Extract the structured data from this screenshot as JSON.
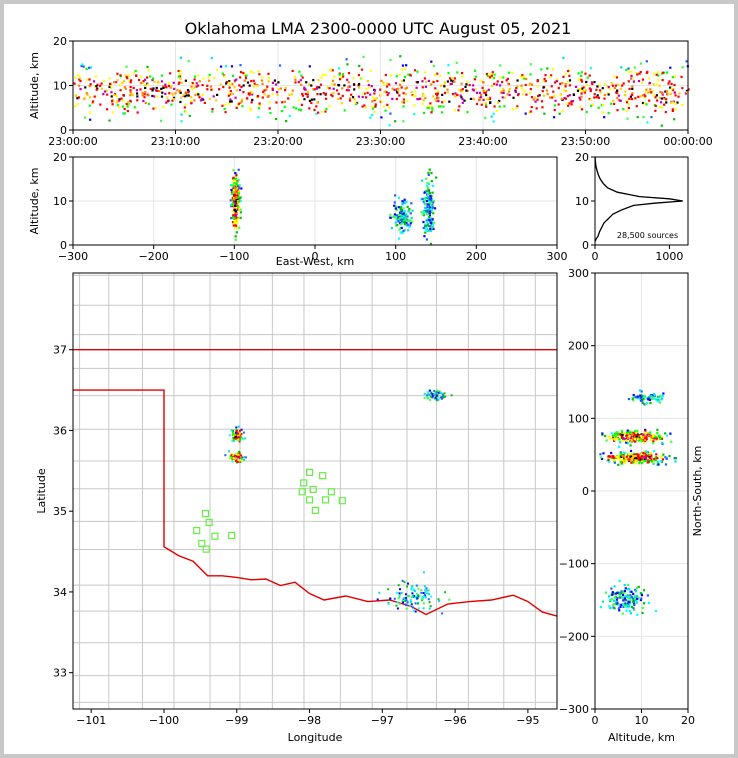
{
  "figure": {
    "title": "Oklahoma LMA 2300-0000 UTC August 05, 2021"
  },
  "chart_data": [
    {
      "id": "time-height",
      "type": "scatter",
      "title": "",
      "xlabel": "",
      "ylabel": "Altitude, km",
      "xlim": [
        0,
        60
      ],
      "ylim": [
        0,
        20
      ],
      "xticks": [
        0,
        10,
        20,
        30,
        40,
        50,
        60
      ],
      "xtick_labels": [
        "23:00:00",
        "23:10:00",
        "23:20:00",
        "23:30:00",
        "23:40:00",
        "23:50:00",
        "00:00:00"
      ],
      "yticks": [
        0,
        10,
        20
      ],
      "ytick_labels": [
        "0",
        "10",
        "20"
      ],
      "grid": true,
      "clusters": [
        {
          "x": [
            0,
            60
          ],
          "y_mean": 9,
          "y_sd": 2.8,
          "n": 1200
        }
      ]
    },
    {
      "id": "ew-height",
      "type": "scatter",
      "xlabel": "East-West, km",
      "ylabel": "Altitude, km",
      "xlim": [
        -300,
        300
      ],
      "ylim": [
        0,
        20
      ],
      "xticks": [
        -300,
        -200,
        -100,
        0,
        100,
        200,
        300
      ],
      "xtick_labels": [
        "−300",
        "−200",
        "−100",
        "0",
        "100",
        "200",
        "300"
      ],
      "yticks": [
        0,
        10,
        20
      ],
      "ytick_labels": [
        "0",
        "10",
        "20"
      ],
      "grid": true,
      "clusters": [
        {
          "x_mean": -100,
          "x_sd": 2.5,
          "y_mean": 10,
          "y_sd": 3.2,
          "n": 200,
          "hot": true
        },
        {
          "x_mean": 106,
          "x_sd": 6,
          "y_mean": 6.5,
          "y_sd": 1.6,
          "n": 120,
          "hot": false
        },
        {
          "x_mean": 140,
          "x_sd": 3.5,
          "y_mean": 9,
          "y_sd": 3.2,
          "n": 150,
          "hot": false
        }
      ]
    },
    {
      "id": "altitude-histogram",
      "type": "line",
      "xlim": [
        0,
        1250
      ],
      "ylim": [
        0,
        20
      ],
      "xticks": [
        0,
        1000
      ],
      "xtick_labels": [
        "0",
        "1000"
      ],
      "yticks": [
        0,
        10,
        20
      ],
      "ytick_labels": [
        "0",
        "10",
        "20"
      ],
      "annotation": "28,500 sources",
      "y": [
        0.8,
        1.5,
        2,
        3,
        4,
        5,
        6,
        7,
        8,
        9,
        9.5,
        10,
        10.5,
        11,
        12,
        13,
        14,
        15,
        16,
        17,
        18,
        19,
        20
      ],
      "x": [
        0,
        20,
        40,
        60,
        90,
        120,
        180,
        240,
        360,
        520,
        800,
        1180,
        1000,
        600,
        300,
        170,
        110,
        70,
        45,
        25,
        12,
        5,
        2
      ]
    },
    {
      "id": "plan-view",
      "type": "scatter",
      "xlabel": "Longitude",
      "ylabel": "Latitude",
      "xlim": [
        -101.25,
        -94.6
      ],
      "ylim": [
        32.55,
        37.95
      ],
      "xticks": [
        -101,
        -100,
        -99,
        -98,
        -97,
        -96,
        -95
      ],
      "xtick_labels": [
        "−101",
        "−100",
        "−99",
        "−98",
        "−97",
        "−96",
        "−95"
      ],
      "yticks": [
        33,
        34,
        35,
        36,
        37
      ],
      "ytick_labels": [
        "33",
        "34",
        "35",
        "36",
        "37"
      ],
      "clusters": [
        {
          "x_mean": -99.0,
          "x_sd": 0.04,
          "y_mean": 35.95,
          "y_sd": 0.04,
          "n": 90,
          "hot": true
        },
        {
          "x_mean": -99.02,
          "x_sd": 0.05,
          "y_mean": 35.68,
          "y_sd": 0.03,
          "n": 70,
          "hot": true
        },
        {
          "x_mean": -96.28,
          "x_sd": 0.08,
          "y_mean": 36.45,
          "y_sd": 0.03,
          "n": 60,
          "hot": false
        },
        {
          "x_mean": -96.6,
          "x_sd": 0.18,
          "y_mean": 33.95,
          "y_sd": 0.08,
          "n": 110,
          "hot": false
        }
      ],
      "stations": {
        "lon": [
          -98.0,
          -97.82,
          -98.08,
          -97.95,
          -98.1,
          -97.7,
          -98.0,
          -97.78,
          -97.55,
          -97.92,
          -99.43,
          -99.38,
          -99.55,
          -99.3,
          -99.48,
          -99.42,
          -99.07
        ],
        "lat": [
          35.48,
          35.44,
          35.35,
          35.27,
          35.24,
          35.24,
          35.14,
          35.14,
          35.13,
          35.01,
          34.97,
          34.86,
          34.76,
          34.69,
          34.6,
          34.53,
          34.7
        ]
      }
    },
    {
      "id": "ns-height",
      "type": "scatter",
      "xlabel": "Altitude, km",
      "ylabel": "North-South, km",
      "xlim": [
        0,
        20
      ],
      "ylim": [
        -300,
        300
      ],
      "xticks": [
        0,
        10,
        20
      ],
      "xtick_labels": [
        "0",
        "10",
        "20"
      ],
      "yticks": [
        -300,
        -200,
        -100,
        0,
        100,
        200,
        300
      ],
      "ytick_labels": [
        "−300",
        "−200",
        "−100",
        "0",
        "100",
        "200",
        "300"
      ],
      "grid": true,
      "clusters": [
        {
          "x_mean": 11,
          "x_sd": 1.8,
          "y_mean": 130,
          "y_sd": 4,
          "n": 70,
          "hot": false
        },
        {
          "x_mean": 8.5,
          "x_sd": 3.2,
          "y_mean": 76,
          "y_sd": 4,
          "n": 230,
          "hot": true
        },
        {
          "x_mean": 8.5,
          "x_sd": 3.2,
          "y_mean": 47,
          "y_sd": 4,
          "n": 230,
          "hot": true
        },
        {
          "x_mean": 6.5,
          "x_sd": 2,
          "y_mean": -148,
          "y_sd": 9,
          "n": 150,
          "hot": false
        }
      ]
    }
  ]
}
